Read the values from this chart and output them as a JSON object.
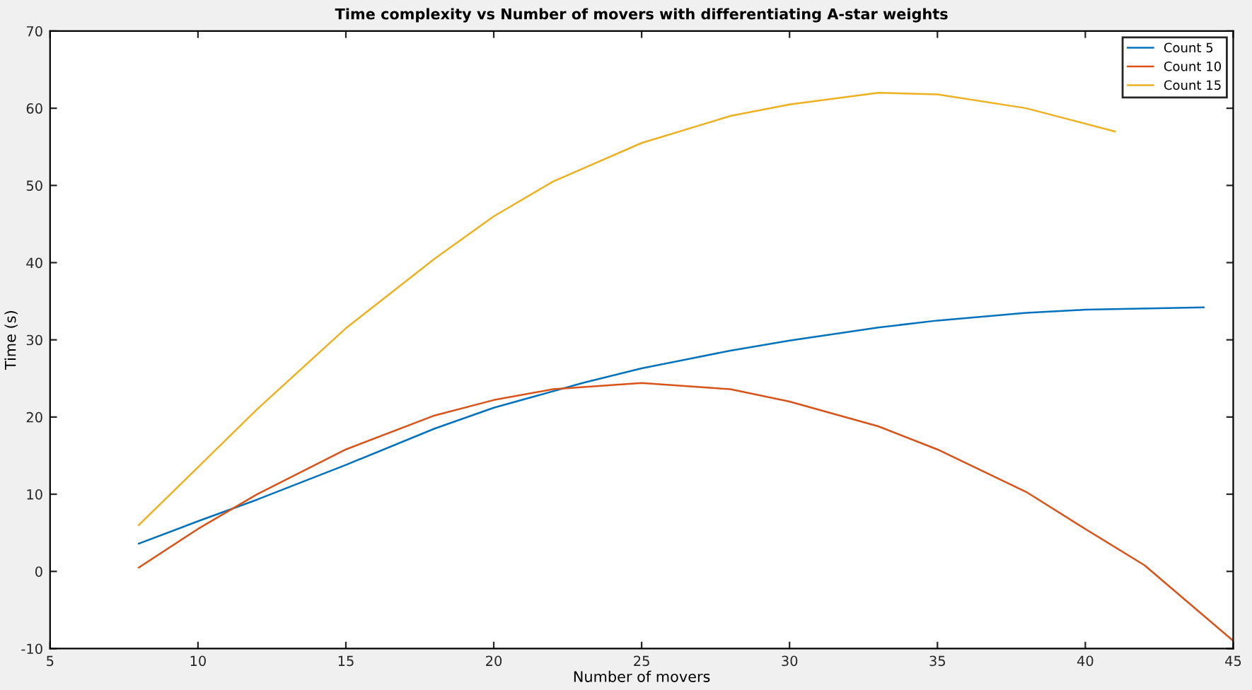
{
  "chart_data": {
    "type": "line",
    "title": "Time complexity vs Number of movers with differentiating A-star weights",
    "xlabel": "Number of movers",
    "ylabel": "Time (s)",
    "xlim": [
      5,
      45
    ],
    "xticks": [
      5,
      10,
      15,
      20,
      25,
      30,
      35,
      40,
      45
    ],
    "ylim": [
      -10,
      70
    ],
    "yticks": [
      -10,
      0,
      10,
      20,
      30,
      40,
      50,
      60,
      70
    ],
    "grid": false,
    "legend": "top right",
    "marker": "none",
    "line_style": "solid",
    "series": [
      {
        "name": "Count 5",
        "color": "#0072bd",
        "x": [
          8,
          10,
          12,
          15,
          18,
          20,
          23,
          25,
          28,
          30,
          33,
          35,
          38,
          40,
          44
        ],
        "values": [
          3.6,
          6.5,
          9.3,
          13.8,
          18.5,
          21.2,
          24.4,
          26.3,
          28.6,
          29.9,
          31.6,
          32.5,
          33.5,
          33.9,
          34.2
        ]
      },
      {
        "name": "Count 10",
        "color": "#d95319",
        "x": [
          8,
          10,
          12,
          15,
          18,
          20,
          22,
          25,
          28,
          30,
          33,
          35,
          38,
          40,
          42,
          45
        ],
        "values": [
          0.5,
          5.5,
          10,
          15.8,
          20.2,
          22.2,
          23.6,
          24.4,
          23.6,
          22,
          18.8,
          15.8,
          10.3,
          5.5,
          0.8,
          -9
        ]
      },
      {
        "name": "Count 15",
        "color": "#edb120",
        "x": [
          8,
          10,
          12,
          15,
          18,
          20,
          22,
          25,
          28,
          30,
          33,
          35,
          38,
          41
        ],
        "values": [
          6,
          13.5,
          21,
          31.5,
          40.5,
          46,
          50.5,
          55.5,
          59,
          60.5,
          62,
          61.8,
          60,
          57
        ]
      }
    ]
  }
}
